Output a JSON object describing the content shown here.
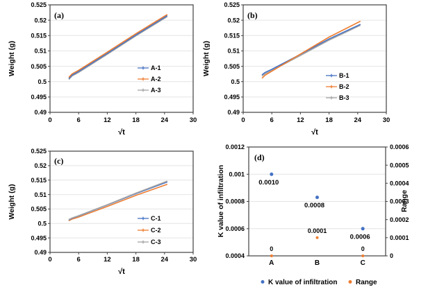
{
  "figure": {
    "background": "#ffffff"
  },
  "palette": {
    "blue": "#4472C4",
    "orange": "#ED7D31",
    "gray": "#A5A5A5",
    "green": "#70AD47",
    "axis": "#404040",
    "grid": "#E4E4E4",
    "text": "#000000"
  },
  "chart_data": [
    {
      "id": "a",
      "type": "line",
      "panel_label": "(a)",
      "xlabel": "√t",
      "ylabel": "Weight (g)",
      "xlim": [
        0,
        30
      ],
      "xticks": [
        "0",
        "6",
        "12",
        "18",
        "24",
        "30"
      ],
      "ylim": [
        0.49,
        0.525
      ],
      "yticks": [
        "0.49",
        "0.495",
        "0.5",
        "0.505",
        "0.51",
        "0.515",
        "0.52",
        "0.525"
      ],
      "grid": "horizontal",
      "legend_position": "inside-lower-right",
      "x": [
        4,
        4.6,
        6,
        12,
        18,
        24.5
      ],
      "series": [
        {
          "name": "A-1",
          "color": "blue",
          "y": [
            0.5011,
            0.5021,
            0.5033,
            0.5092,
            0.5152,
            0.5214
          ]
        },
        {
          "name": "A-2",
          "color": "orange",
          "y": [
            0.5015,
            0.5025,
            0.5037,
            0.5096,
            0.5156,
            0.5218
          ]
        },
        {
          "name": "A-3",
          "color": "gray",
          "y": [
            0.5008,
            0.5018,
            0.503,
            0.5089,
            0.5149,
            0.5211
          ]
        }
      ],
      "draw_order": [
        2,
        0,
        1
      ]
    },
    {
      "id": "b",
      "type": "line",
      "panel_label": "(b)",
      "xlabel": "√t",
      "ylabel": "Weight (g)",
      "xlim": [
        0,
        30
      ],
      "xticks": [
        "0",
        "6",
        "12",
        "18",
        "24",
        "30"
      ],
      "ylim": [
        0.49,
        0.525
      ],
      "yticks": [
        "0.49",
        "0.495",
        "0.5",
        "0.505",
        "0.51",
        "0.515",
        "0.52",
        "0.525"
      ],
      "grid": "horizontal",
      "legend_position": "inside-lower-right",
      "x": [
        4,
        4.6,
        6,
        12,
        18,
        24.5
      ],
      "series": [
        {
          "name": "B-1",
          "color": "blue",
          "y": [
            0.5023,
            0.503,
            0.504,
            0.5089,
            0.5139,
            0.5186
          ]
        },
        {
          "name": "B-2",
          "color": "orange",
          "y": [
            0.5012,
            0.5021,
            0.5034,
            0.509,
            0.5145,
            0.5196
          ]
        },
        {
          "name": "B-3",
          "color": "gray",
          "y": [
            0.5019,
            0.5026,
            0.5036,
            0.5085,
            0.5135,
            0.5183
          ]
        }
      ],
      "draw_order": [
        2,
        0,
        1
      ]
    },
    {
      "id": "c",
      "type": "line",
      "panel_label": "(c)",
      "xlabel": "√t",
      "ylabel": "Weight (g)",
      "xlim": [
        0,
        30
      ],
      "xticks": [
        "0",
        "6",
        "12",
        "18",
        "24",
        "30"
      ],
      "ylim": [
        0.49,
        0.525
      ],
      "yticks": [
        "0.49",
        "0.495",
        "0.5",
        "0.505",
        "0.51",
        "0.515",
        "0.52",
        "0.525"
      ],
      "grid": "horizontal",
      "legend_position": "inside-lower-right",
      "x": [
        4,
        4.6,
        6,
        12,
        18,
        24.5
      ],
      "series": [
        {
          "name": "C-1",
          "color": "blue",
          "y": [
            0.5013,
            0.5018,
            0.5026,
            0.5064,
            0.5103,
            0.5143
          ]
        },
        {
          "name": "C-2",
          "color": "orange",
          "y": [
            0.501,
            0.5015,
            0.5022,
            0.5059,
            0.5097,
            0.5135
          ]
        },
        {
          "name": "C-3",
          "color": "gray",
          "y": [
            0.5014,
            0.5019,
            0.5027,
            0.5065,
            0.5105,
            0.5146
          ]
        }
      ],
      "draw_order": [
        1,
        0,
        2
      ]
    },
    {
      "id": "d",
      "type": "scatter",
      "panel_label": "(d)",
      "categories": [
        "A",
        "B",
        "C"
      ],
      "grid": "horizontal",
      "left_axis": {
        "title": "K value of infiltration",
        "lim": [
          0.0004,
          0.0012
        ],
        "ticks": [
          "0.0004",
          "0.0006",
          "0.0008",
          "0.001",
          "0.0012"
        ]
      },
      "right_axis": {
        "title": "Range",
        "lim": [
          0,
          0.0006
        ],
        "ticks": [
          "0",
          "0.0001",
          "0.0002",
          "0.0003",
          "0.0004",
          "0.0005",
          "0.0006"
        ],
        "color": "green"
      },
      "series": [
        {
          "name": "K value of infiltration",
          "axis": "left",
          "color": "blue",
          "values": [
            0.001,
            0.00083,
            0.0006
          ],
          "point_labels": [
            "0.0010",
            "0.0008",
            "0.0006"
          ],
          "label_color": "text"
        },
        {
          "name": "Range",
          "axis": "right",
          "color": "orange",
          "values": [
            0,
            0.0001,
            0
          ],
          "point_labels": [
            "0",
            "0.0001",
            "0"
          ],
          "label_color": "green"
        }
      ],
      "legend": [
        {
          "label": "K value of infiltration",
          "color": "blue"
        },
        {
          "label": "Range",
          "color": "orange"
        }
      ],
      "legend_position": "bottom"
    }
  ]
}
